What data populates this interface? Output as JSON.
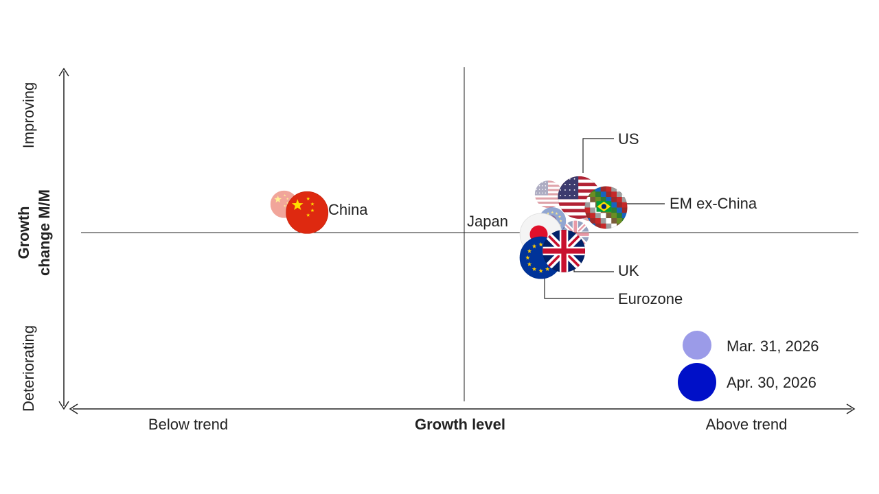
{
  "chart_data": {
    "type": "scatter",
    "title": "",
    "xlabel": "Growth level",
    "ylabel_line1": "Growth",
    "ylabel_line2": "change M/M",
    "x_low_label": "Below trend",
    "x_high_label": "Above trend",
    "y_low_label": "Deteriorating",
    "y_high_label": "Improving",
    "xlim": [
      -1,
      1
    ],
    "ylim": [
      -1,
      1
    ],
    "grid": false,
    "legend": {
      "position": "bottom-right",
      "entries": [
        {
          "name": "Mar. 31, 2026",
          "color": "#9b9be8"
        },
        {
          "name": "Apr. 30, 2026",
          "color": "#0010c8"
        }
      ]
    },
    "series": [
      {
        "name": "Mar. 31, 2026",
        "points": [
          {
            "country": "China",
            "x": -0.47,
            "y": 0.18
          },
          {
            "country": "US",
            "x": 0.22,
            "y": 0.24
          },
          {
            "country": "EM ex-China",
            "x": 0.33,
            "y": 0.16
          },
          {
            "country": "Japan",
            "x": 0.23,
            "y": 0.08
          },
          {
            "country": "Eurozone",
            "x": 0.23,
            "y": 0.08
          },
          {
            "country": "UK",
            "x": 0.29,
            "y": 0.0
          }
        ]
      },
      {
        "name": "Apr. 30, 2026",
        "points": [
          {
            "country": "China",
            "x": -0.41,
            "y": 0.13
          },
          {
            "country": "US",
            "x": 0.3,
            "y": 0.22
          },
          {
            "country": "EM ex-China",
            "x": 0.37,
            "y": 0.16
          },
          {
            "country": "Japan",
            "x": 0.2,
            "y": 0.0
          },
          {
            "country": "Eurozone",
            "x": 0.2,
            "y": -0.14
          },
          {
            "country": "UK",
            "x": 0.26,
            "y": -0.1
          }
        ]
      }
    ],
    "labels": {
      "China": "China",
      "US": "US",
      "EM ex-China": "EM ex-China",
      "Japan": "Japan",
      "UK": "UK",
      "Eurozone": "Eurozone"
    }
  }
}
